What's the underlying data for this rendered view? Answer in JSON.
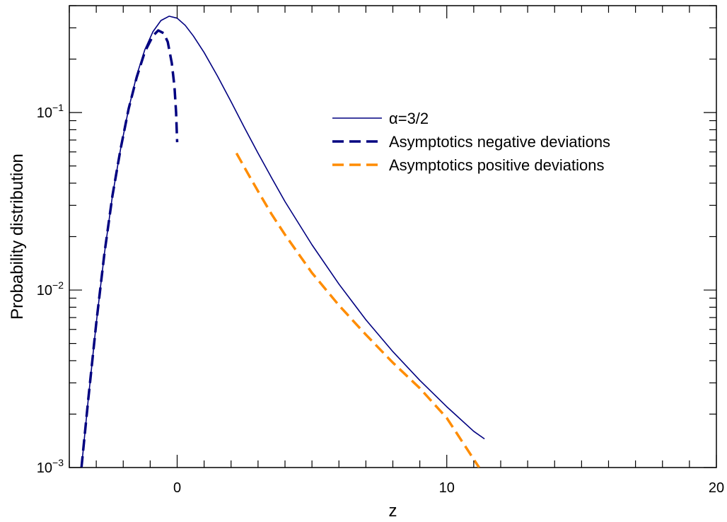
{
  "chart_data": {
    "type": "line",
    "xlabel": "z",
    "ylabel": "Probability distribution",
    "xscale": "linear",
    "yscale": "log",
    "xlim": [
      -4,
      20
    ],
    "ylim": [
      0.001,
      0.4
    ],
    "grid": false,
    "legend_position": "upper-right",
    "x_ticks": [
      0,
      10,
      20
    ],
    "x_tick_labels": [
      "0",
      "10",
      "20"
    ],
    "y_ticks": [
      0.001,
      0.01,
      0.1
    ],
    "y_tick_labels": [
      {
        "base": "10",
        "exp": "−3"
      },
      {
        "base": "10",
        "exp": "−2"
      },
      {
        "base": "10",
        "exp": "−1"
      }
    ],
    "series": [
      {
        "name": "α=3/2",
        "color": "#000080",
        "style": "solid",
        "points": [
          [
            -3.55,
            0.001
          ],
          [
            -3.3,
            0.0024
          ],
          [
            -3.0,
            0.0065
          ],
          [
            -2.7,
            0.016
          ],
          [
            -2.4,
            0.034
          ],
          [
            -2.1,
            0.062
          ],
          [
            -1.8,
            0.105
          ],
          [
            -1.5,
            0.162
          ],
          [
            -1.2,
            0.226
          ],
          [
            -0.9,
            0.285
          ],
          [
            -0.6,
            0.33
          ],
          [
            -0.3,
            0.349
          ],
          [
            0.0,
            0.34
          ],
          [
            0.3,
            0.31
          ],
          [
            0.6,
            0.27
          ],
          [
            1.0,
            0.218
          ],
          [
            1.5,
            0.16
          ],
          [
            2.0,
            0.115
          ],
          [
            2.5,
            0.082
          ],
          [
            3.0,
            0.059
          ],
          [
            3.5,
            0.043
          ],
          [
            4.0,
            0.0315
          ],
          [
            5.0,
            0.018
          ],
          [
            6.0,
            0.0108
          ],
          [
            7.0,
            0.0068
          ],
          [
            8.0,
            0.0045
          ],
          [
            9.0,
            0.0031
          ],
          [
            10.0,
            0.0022
          ],
          [
            11.0,
            0.0016
          ],
          [
            11.4,
            0.00145
          ]
        ]
      },
      {
        "name": "Asymptotics negative deviations",
        "color": "#000080",
        "style": "dashed",
        "points": [
          [
            -3.55,
            0.001
          ],
          [
            -3.3,
            0.0024
          ],
          [
            -3.0,
            0.0065
          ],
          [
            -2.7,
            0.016
          ],
          [
            -2.4,
            0.034
          ],
          [
            -2.1,
            0.062
          ],
          [
            -1.8,
            0.105
          ],
          [
            -1.5,
            0.158
          ],
          [
            -1.2,
            0.22
          ],
          [
            -0.9,
            0.27
          ],
          [
            -0.7,
            0.29
          ],
          [
            -0.5,
            0.28
          ],
          [
            -0.35,
            0.25
          ],
          [
            -0.2,
            0.19
          ],
          [
            -0.1,
            0.14
          ],
          [
            -0.04,
            0.1
          ],
          [
            0.0,
            0.068
          ]
        ]
      },
      {
        "name": "Asymptotics positive deviations",
        "color": "#FF8C00",
        "style": "dashed",
        "points": [
          [
            2.2,
            0.059
          ],
          [
            2.6,
            0.046
          ],
          [
            3.0,
            0.036
          ],
          [
            3.5,
            0.0268
          ],
          [
            4.0,
            0.0205
          ],
          [
            5.0,
            0.0125
          ],
          [
            6.0,
            0.0082
          ],
          [
            7.0,
            0.0056
          ],
          [
            8.0,
            0.0039
          ],
          [
            9.0,
            0.0028
          ],
          [
            10.0,
            0.0019
          ],
          [
            11.2,
            0.001
          ]
        ]
      }
    ]
  }
}
